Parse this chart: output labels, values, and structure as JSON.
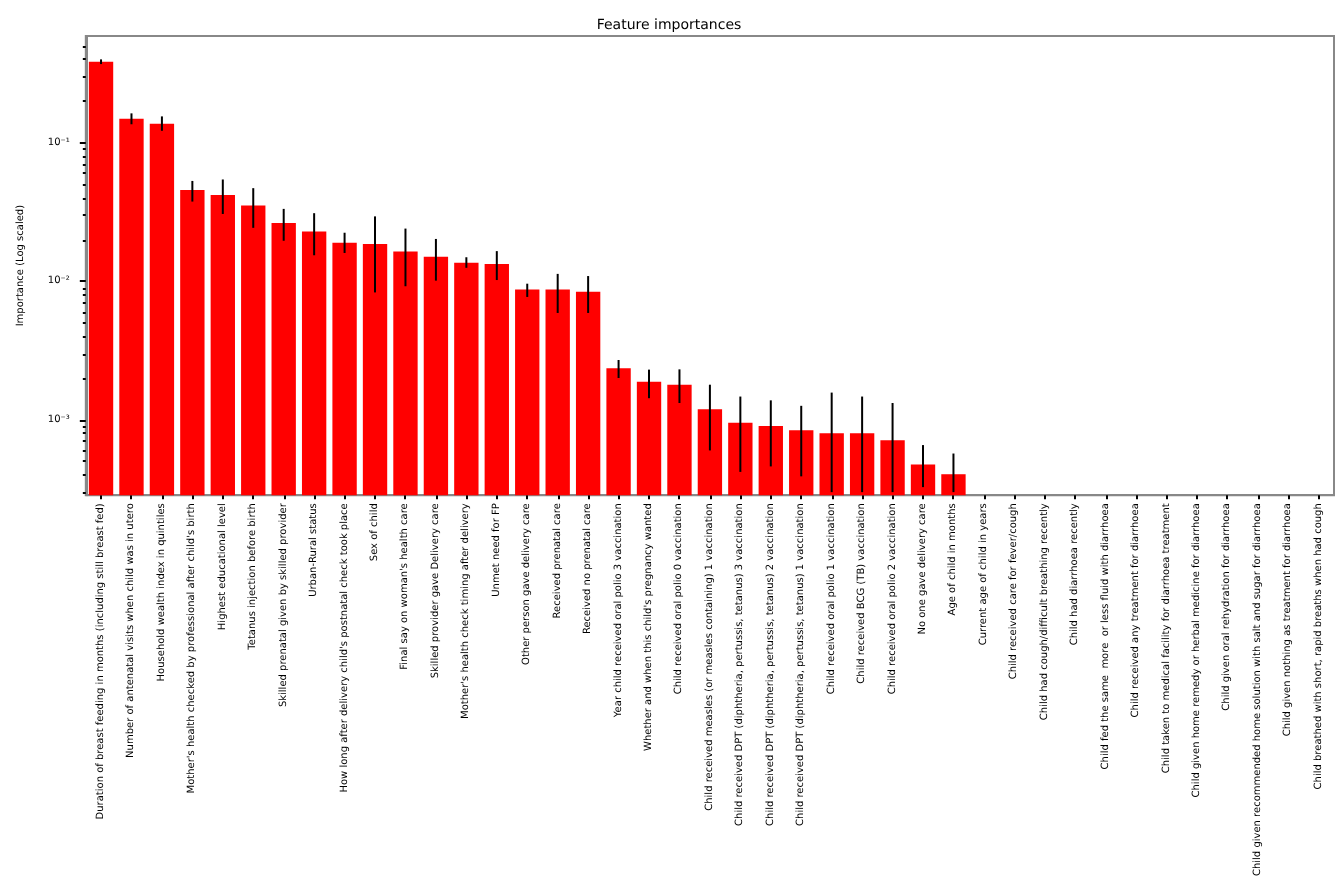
{
  "chart_data": {
    "type": "bar",
    "title": "Feature importances",
    "ylabel": "Importance (Log scaled)",
    "categories": [
      "Duration of breast feeding in months (including still breast fed)",
      "Number of antenatal visits when child was in utero",
      "Household wealth index in quintiles",
      "Mother's health checked by professional after child's birth",
      "Highest educational level",
      "Tetanus injection before birth",
      "Skilled prenatal given by skilled provider",
      "Urban-Rural status",
      "How long after delivery child's postnatal check took place",
      "Sex of child",
      "Final say on woman's health care",
      "Skilled provider gave Delivery care",
      "Mother's health check timing after delivery",
      "Unmet need for FP",
      "Other person gave delivery care",
      "Received prenatal care",
      "Received no prenatal care",
      "Year child received oral polio 3 vaccination",
      "Whether and when this child's pregnancy wanted",
      "Child received oral polio 0 vaccination",
      "Child received measles (or measles containing) 1 vaccination",
      "Child received DPT (diphtheria, pertussis, tetanus) 3 vaccination",
      "Child received DPT (diphtheria, pertussis, tetanus) 2 vaccination",
      "Child received DPT (diphtheria, pertussis, tetanus) 1 vaccination",
      "Child received oral polio 1 vaccination",
      "Child received BCG (TB) vaccination",
      "Child received oral polio 2 vaccination",
      "No one gave delivery care",
      "Age of child in months",
      "Current age of child in years",
      "Child received care for fever/cough",
      "Child had cough/difficult breathing recently",
      "Child had diarrhoea recently",
      "Child fed the same  more  or less fluid with diarrhoea",
      "Child received any treatment for diarrhoea",
      "Child taken to medical facility for diarrhoea treatment",
      "Child given home remedy or herbal medicine for diarrhoea",
      "Child given oral rehydration for diarrhoea",
      "Child given recommended home solution with salt and sugar for diarrhoea",
      "Child given nothing as treatment for diarrhoea",
      "Child breathed with short, rapid breaths when had cough"
    ],
    "values": [
      0.384,
      0.149,
      0.137,
      0.0456,
      0.042,
      0.0353,
      0.0263,
      0.0229,
      0.019,
      0.0186,
      0.0164,
      0.015,
      0.0136,
      0.0133,
      0.0087,
      0.0087,
      0.0084,
      0.00235,
      0.00188,
      0.00179,
      0.00119,
      0.00095,
      0.0009,
      0.00084,
      0.0008,
      0.0008,
      0.00071,
      0.000475,
      0.000404,
      null,
      null,
      null,
      null,
      null,
      null,
      null,
      null,
      null,
      null,
      null,
      null
    ],
    "errors": [
      [
        0.37,
        0.4
      ],
      [
        0.136,
        0.163
      ],
      [
        0.122,
        0.155
      ],
      [
        0.0376,
        0.053
      ],
      [
        0.0306,
        0.0543
      ],
      [
        0.0243,
        0.047
      ],
      [
        0.0196,
        0.0333
      ],
      [
        0.0154,
        0.031
      ],
      [
        0.016,
        0.0224
      ],
      [
        0.0083,
        0.0294
      ],
      [
        0.0092,
        0.024
      ],
      [
        0.0101,
        0.0202
      ],
      [
        0.0125,
        0.0149
      ],
      [
        0.0102,
        0.0165
      ],
      [
        0.0077,
        0.0096
      ],
      [
        0.0059,
        0.0113
      ],
      [
        0.0059,
        0.0109
      ],
      [
        0.002,
        0.0027
      ],
      [
        0.00143,
        0.0023
      ],
      [
        0.00132,
        0.00231
      ],
      [
        0.0006,
        0.00179
      ],
      [
        0.00042,
        0.00147
      ],
      [
        0.00046,
        0.00138
      ],
      [
        0.00039,
        0.00126
      ],
      [
        0.0003,
        0.00157
      ],
      [
        0.0003,
        0.00147
      ],
      [
        0.0003,
        0.00132
      ],
      [
        0.000326,
        0.000656
      ],
      [
        0.0003,
        0.00057
      ],
      null,
      null,
      null,
      null,
      null,
      null,
      null,
      null,
      null,
      null,
      null,
      null
    ],
    "color": "#ff0000",
    "log": true,
    "grid": false,
    "ylim": [
      0.000285,
      0.59
    ],
    "yticks": [
      {
        "value": 0.001,
        "label": "10⁻³"
      },
      {
        "value": 0.01,
        "label": "10⁻²"
      },
      {
        "value": 0.1,
        "label": "10⁻¹"
      }
    ]
  }
}
